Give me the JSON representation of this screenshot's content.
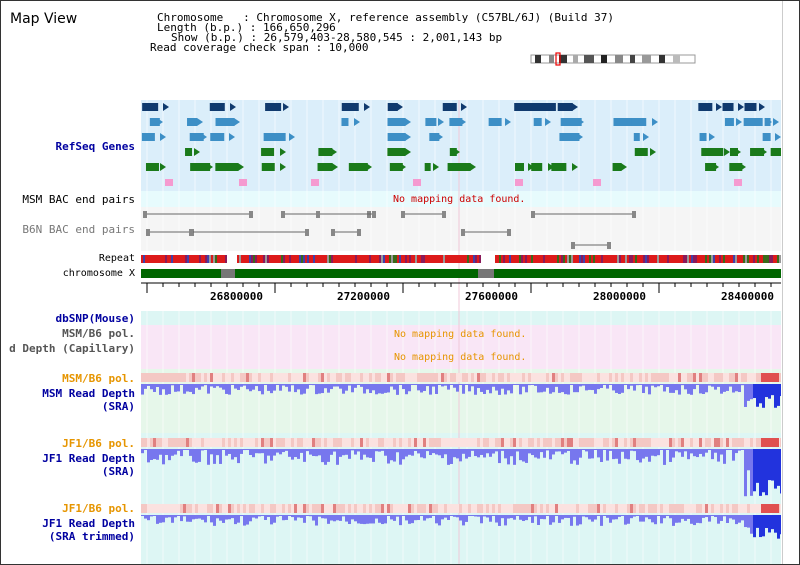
{
  "header": {
    "title": "Map View",
    "chromosome_line": "Chromosome   : Chromosome X, reference assembly (C57BL/6J) (Build 37)",
    "length_line": "Length (b.p.) : 166,650,296",
    "show_line": "Show (b.p.) : 26,579,403-28,580,545 : 2,001,143 bp",
    "coverage_line": "Read coverage check span : 10,000"
  },
  "tracks": {
    "refseq": "RefSeq Genes",
    "msm_bac": "MSM BAC end pairs",
    "b6n_bac": "B6N BAC end pairs",
    "repeat": "Repeat",
    "chromosome": "chromosome X",
    "dbsnp": "dbSNP(Mouse)",
    "msm_b6_pol_a": "MSM/B6 pol.",
    "read_depth_capillary": "d Depth (Capillary)",
    "msm_b6_pol_b": "MSM/B6 pol.",
    "msm_read_depth_1": "MSM Read Depth",
    "msm_read_depth_2": "(SRA)",
    "jf1_b6_pol_a": "JF1/B6 pol.",
    "jf1_read_depth_1": "JF1 Read Depth",
    "jf1_read_depth_2": "(SRA)",
    "jf1_b6_pol_b": "JF1/B6 pol.",
    "jf1_trim_1": "JF1 Read Depth",
    "jf1_trim_2": "(SRA trimmed)"
  },
  "messages": {
    "no_mapping_msm": "No mapping data found.",
    "no_mapping_pol": "No mapping data found.",
    "no_mapping_capillary": "No mapping data found."
  },
  "axis": {
    "ticks": [
      "26800000",
      "27200000",
      "27600000",
      "28000000",
      "28400000"
    ]
  },
  "colors": {
    "refseq_bg": "#dbeefa",
    "teal_bg": "#ddf6f4",
    "pink_bg": "#f9e6f6",
    "green_bg": "#e6f7ea",
    "label_blue": "#0000a0",
    "label_orange": "#e69500",
    "nodata_red": "#cc0000",
    "nodata_orange": "#e69500",
    "chrom_green": "#006600",
    "depth_purple": "#7777ee"
  }
}
